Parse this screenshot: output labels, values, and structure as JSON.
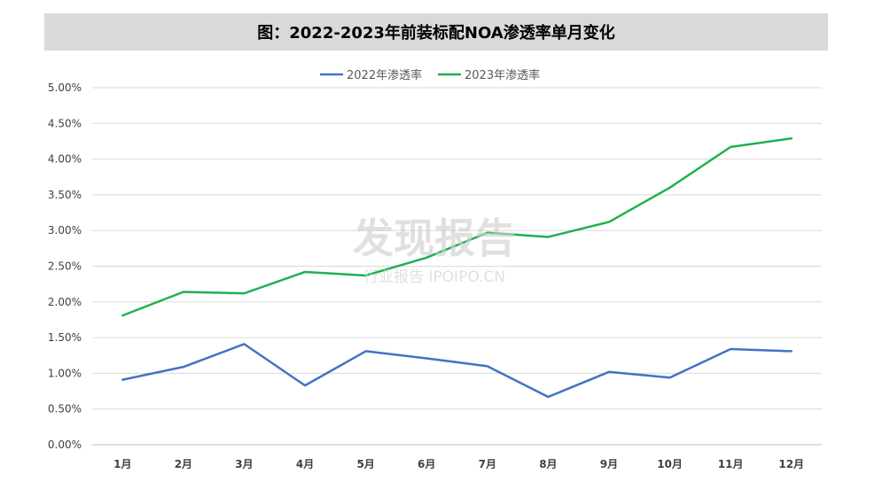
{
  "chart_data": {
    "type": "line",
    "title": "图：2022-2023年前装标配NOA渗透率单月变化",
    "categories": [
      "1月",
      "2月",
      "3月",
      "4月",
      "5月",
      "6月",
      "7月",
      "8月",
      "9月",
      "10月",
      "11月",
      "12月"
    ],
    "series": [
      {
        "name": "2022年渗透率",
        "color": "#4472c4",
        "values": [
          0.91,
          1.09,
          1.41,
          0.83,
          1.31,
          1.21,
          1.1,
          0.67,
          1.02,
          0.94,
          1.34,
          1.31
        ]
      },
      {
        "name": "2023年渗透率",
        "color": "#1fb050",
        "values": [
          1.81,
          2.14,
          2.12,
          2.42,
          2.37,
          2.62,
          2.97,
          2.91,
          3.12,
          3.6,
          4.17,
          4.29
        ]
      }
    ],
    "y_ticks": [
      "0.00%",
      "0.50%",
      "1.00%",
      "1.50%",
      "2.00%",
      "2.50%",
      "3.00%",
      "3.50%",
      "4.00%",
      "4.50%",
      "5.00%"
    ],
    "ylim": [
      0,
      5
    ],
    "grid": true,
    "legend_position": "top"
  },
  "watermark": {
    "brand": "发现报告",
    "sub": "行业报告 IPOIPO.CN"
  }
}
